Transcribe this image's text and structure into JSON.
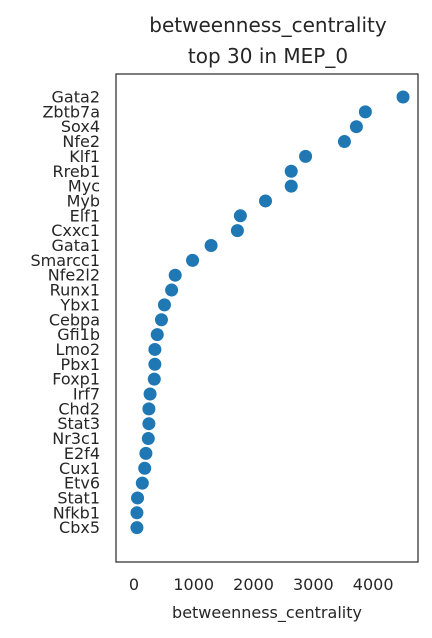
{
  "chart_data": {
    "type": "scatter",
    "title_lines": [
      "betweenness_centrality",
      "top 30 in MEP_0"
    ],
    "xlabel": "betweenness_centrality",
    "xticks": [
      0,
      1000,
      2000,
      3000,
      4000
    ],
    "xtick_labels": [
      "0",
      "1000",
      "2000",
      "3000",
      "4000"
    ],
    "xlim": [
      -300,
      4750
    ],
    "grid": false,
    "point_color": "#1f77b4",
    "categories": [
      "Gata2",
      "Zbtb7a",
      "Sox4",
      "Nfe2",
      "Klf1",
      "Rreb1",
      "Myc",
      "Myb",
      "Elf1",
      "Cxxc1",
      "Gata1",
      "Smarcc1",
      "Nfe2l2",
      "Runx1",
      "Ybx1",
      "Cebpa",
      "Gfi1b",
      "Lmo2",
      "Pbx1",
      "Foxp1",
      "Irf7",
      "Chd2",
      "Stat3",
      "Nr3c1",
      "E2f4",
      "Cux1",
      "Etv6",
      "Stat1",
      "Nfkb1",
      "Cbx5"
    ],
    "values": [
      4500,
      3870,
      3720,
      3520,
      2870,
      2630,
      2630,
      2200,
      1780,
      1730,
      1290,
      980,
      690,
      630,
      510,
      460,
      390,
      350,
      350,
      340,
      270,
      250,
      250,
      240,
      200,
      180,
      140,
      60,
      50,
      50
    ]
  }
}
